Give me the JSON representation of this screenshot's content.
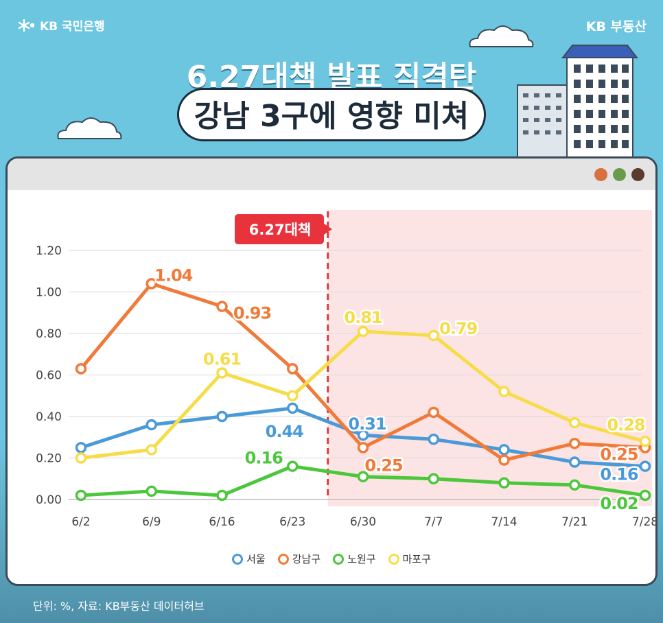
{
  "brand": {
    "left": "KB 국민은행",
    "right": "KB 부동산"
  },
  "title": {
    "line1": "6.27대책 발표 직격탄",
    "line2": "강남 3구에 영향 미쳐"
  },
  "window_dots": [
    "#d8703f",
    "#6a9a4b",
    "#5b3b2e"
  ],
  "footer": "단위: %, 자료: KB부동산 데이터허브",
  "chart_data": {
    "type": "line",
    "categories": [
      "6/2",
      "6/9",
      "6/16",
      "6/23",
      "6/30",
      "7/7",
      "7/14",
      "7/21",
      "7/28"
    ],
    "ylim": [
      0,
      1.2
    ],
    "yticks": [
      "0.00",
      "0.20",
      "0.40",
      "0.60",
      "0.80",
      "1.00",
      "1.20"
    ],
    "grid": true,
    "legend_position": "bottom-center",
    "annotation": {
      "label": "6.27대책",
      "after_category": "6/23"
    },
    "series": [
      {
        "name": "서울",
        "color": "#4a9ad8",
        "values": [
          0.25,
          0.36,
          0.4,
          0.44,
          0.31,
          0.29,
          0.24,
          0.18,
          0.16
        ],
        "labels": {
          "3": "0.44",
          "4": "0.31",
          "8": "0.16"
        }
      },
      {
        "name": "강남구",
        "color": "#f07a3a",
        "values": [
          0.63,
          1.04,
          0.93,
          0.63,
          0.25,
          0.42,
          0.19,
          0.27,
          0.25
        ],
        "labels": {
          "1": "1.04",
          "2": "0.93",
          "4": "0.25",
          "8": "0.25"
        }
      },
      {
        "name": "노원구",
        "color": "#4cc73c",
        "values": [
          0.02,
          0.04,
          0.02,
          0.16,
          0.11,
          0.1,
          0.08,
          0.07,
          0.02
        ],
        "labels": {
          "3": "0.16",
          "8": "0.02"
        }
      },
      {
        "name": "마포구",
        "color": "#f7dc4a",
        "values": [
          0.2,
          0.24,
          0.61,
          0.5,
          0.81,
          0.79,
          0.52,
          0.37,
          0.28
        ],
        "labels": {
          "2": "0.61",
          "4": "0.81",
          "5": "0.79",
          "8": "0.28"
        }
      }
    ]
  }
}
